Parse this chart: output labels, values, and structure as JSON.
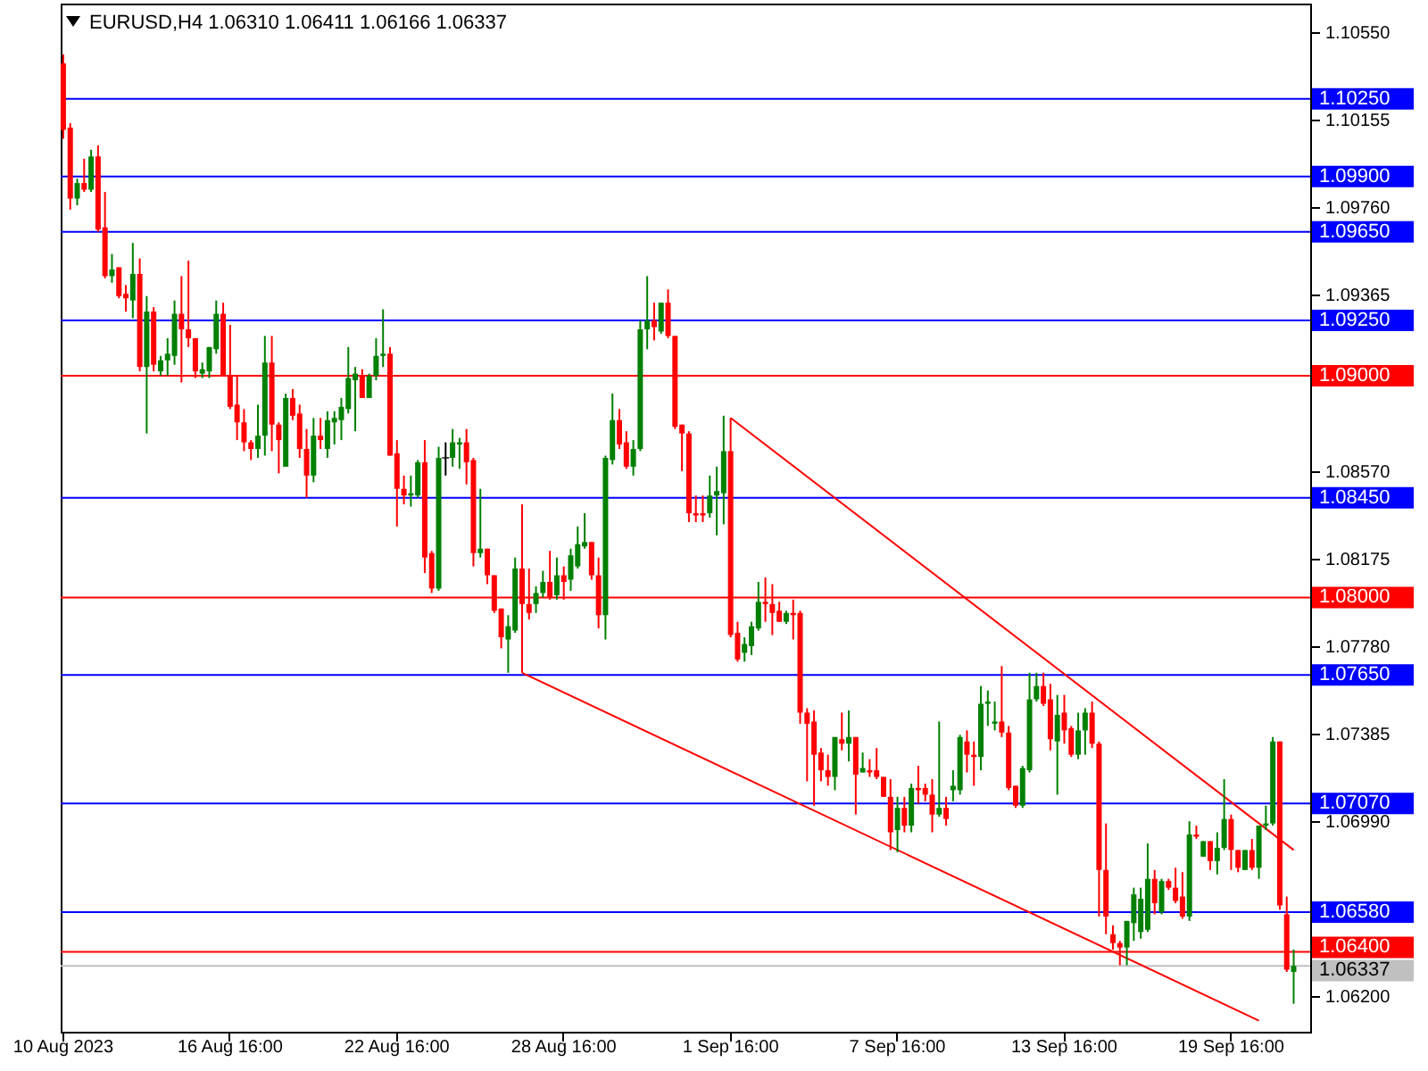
{
  "chart_data": {
    "type": "candlestick",
    "title": "EURUSD,H4 1.06310 1.06411 1.06166 1.06337",
    "categories": [
      "10 Aug 2023",
      null,
      null,
      null,
      null,
      null,
      null,
      null,
      null,
      null,
      null,
      null,
      null,
      null,
      null,
      null,
      null,
      null,
      null,
      null,
      null,
      null,
      null,
      null,
      "16 Aug 16:00",
      null,
      null,
      null,
      null,
      null,
      null,
      null,
      null,
      null,
      null,
      null,
      null,
      null,
      null,
      null,
      null,
      null,
      null,
      null,
      null,
      null,
      null,
      null,
      "22 Aug 16:00",
      null,
      null,
      null,
      null,
      null,
      null,
      null,
      null,
      null,
      null,
      null,
      null,
      null,
      null,
      null,
      null,
      null,
      null,
      null,
      null,
      null,
      null,
      null,
      "28 Aug 16:00",
      null,
      null,
      null,
      null,
      null,
      null,
      null,
      null,
      null,
      null,
      null,
      null,
      null,
      null,
      null,
      null,
      null,
      null,
      null,
      null,
      null,
      null,
      null,
      "1 Sep 16:00",
      null,
      null,
      null,
      null,
      null,
      null,
      null,
      null,
      null,
      null,
      null,
      null,
      null,
      null,
      null,
      null,
      null,
      null,
      null,
      null,
      null,
      null,
      null,
      "7 Sep 16:00",
      null,
      null,
      null,
      null,
      null,
      null,
      null,
      null,
      null,
      null,
      null,
      null,
      null,
      null,
      null,
      null,
      null,
      null,
      null,
      null,
      null,
      null,
      null,
      "13 Sep 16:00",
      null,
      null,
      null,
      null,
      null,
      null,
      null,
      null,
      null,
      null,
      null,
      null,
      null,
      null,
      null,
      null,
      null,
      null,
      null,
      null,
      null,
      null,
      null,
      "19 Sep 16:00",
      null,
      null,
      null,
      null,
      null,
      null,
      null,
      null,
      null
    ],
    "ohlc": [
      [
        1.1041,
        1.1045,
        1.1007,
        1.1011
      ],
      [
        1.1012,
        1.1014,
        1.0975,
        1.098
      ],
      [
        1.098,
        1.0989,
        1.0977,
        1.0987
      ],
      [
        1.0987,
        1.0998,
        1.0983,
        1.0984
      ],
      [
        1.0984,
        1.1002,
        1.0983,
        1.0999
      ],
      [
        1.0999,
        1.1004,
        1.0965,
        1.0966
      ],
      [
        1.0967,
        1.0983,
        1.0944,
        1.0945
      ],
      [
        1.0945,
        1.0955,
        1.0942,
        1.0948
      ],
      [
        1.0949,
        1.0949,
        1.0935,
        1.0936
      ],
      [
        1.0937,
        1.0941,
        1.0929,
        1.0935
      ],
      [
        1.0934,
        1.096,
        1.0926,
        1.0946
      ],
      [
        1.0946,
        1.0953,
        1.0902,
        1.0904
      ],
      [
        1.0904,
        1.0936,
        1.0874,
        1.0929
      ],
      [
        1.0929,
        1.0931,
        1.0902,
        1.0905
      ],
      [
        1.0902,
        1.0909,
        1.09,
        1.0907
      ],
      [
        1.0907,
        1.0917,
        1.09,
        1.091
      ],
      [
        1.0909,
        1.0934,
        1.0905,
        1.0928
      ],
      [
        1.0928,
        1.0945,
        1.0897,
        1.0921
      ],
      [
        1.0921,
        1.0952,
        1.0913,
        1.0917
      ],
      [
        1.0917,
        1.0917,
        1.0899,
        1.0902
      ],
      [
        1.0901,
        1.0906,
        1.0899,
        1.0903
      ],
      [
        1.0902,
        1.0913,
        1.0899,
        1.0913
      ],
      [
        1.0912,
        1.0934,
        1.091,
        1.0928
      ],
      [
        1.0928,
        1.0933,
        1.09,
        1.09
      ],
      [
        1.09,
        1.0923,
        1.0885,
        1.0886
      ],
      [
        1.0887,
        1.09,
        1.0871,
        1.0879
      ],
      [
        1.0879,
        1.0885,
        1.0866,
        1.087
      ],
      [
        1.087,
        1.0871,
        1.0862,
        1.0867
      ],
      [
        1.0867,
        1.0887,
        1.0863,
        1.0873
      ],
      [
        1.0873,
        1.0918,
        1.0864,
        1.0906
      ],
      [
        1.0906,
        1.0918,
        1.0866,
        1.0878
      ],
      [
        1.0878,
        1.0879,
        1.0856,
        1.0871
      ],
      [
        1.0859,
        1.0892,
        1.0859,
        1.089
      ],
      [
        1.089,
        1.0894,
        1.088,
        1.0882
      ],
      [
        1.0883,
        1.0887,
        1.0863,
        1.0867
      ],
      [
        1.0867,
        1.0876,
        1.0845,
        1.0855
      ],
      [
        1.0855,
        1.0881,
        1.0852,
        1.0873
      ],
      [
        1.0873,
        1.0881,
        1.0867,
        1.0871
      ],
      [
        1.0867,
        1.0884,
        1.0863,
        1.088
      ],
      [
        1.0879,
        1.0884,
        1.0869,
        1.0881
      ],
      [
        1.088,
        1.089,
        1.0871,
        1.0886
      ],
      [
        1.0885,
        1.0913,
        1.0883,
        1.0899
      ],
      [
        1.0898,
        1.0904,
        1.0875,
        1.0901
      ],
      [
        1.09,
        1.0903,
        1.089,
        1.089
      ],
      [
        1.089,
        1.0901,
        1.089,
        1.09
      ],
      [
        1.09,
        1.0917,
        1.0898,
        1.0909
      ],
      [
        1.0909,
        1.093,
        1.0904,
        1.091
      ],
      [
        1.091,
        1.0913,
        1.0864,
        1.0864
      ],
      [
        1.0865,
        1.0871,
        1.0832,
        1.0849
      ],
      [
        1.0849,
        1.0855,
        1.0842,
        1.0846
      ],
      [
        1.0846,
        1.0855,
        1.0841,
        1.0847
      ],
      [
        1.0846,
        1.0862,
        1.0845,
        1.0861
      ],
      [
        1.0861,
        1.0871,
        1.0811,
        1.0818
      ],
      [
        1.082,
        1.0821,
        1.0802,
        1.0804
      ],
      [
        1.0804,
        1.0868,
        1.0803,
        1.0863
      ],
      [
        1.0863,
        1.087,
        1.0855,
        1.0863
      ],
      [
        1.0863,
        1.0876,
        1.0859,
        1.087
      ],
      [
        1.0869,
        1.0872,
        1.0858,
        1.087
      ],
      [
        1.087,
        1.0876,
        1.0851,
        1.0861
      ],
      [
        1.0862,
        1.0863,
        1.0814,
        1.082
      ],
      [
        1.082,
        1.0849,
        1.0818,
        1.0822
      ],
      [
        1.0822,
        1.0822,
        1.0806,
        1.081
      ],
      [
        1.081,
        1.081,
        1.0793,
        1.0794
      ],
      [
        1.0795,
        1.0795,
        1.0777,
        1.0782
      ],
      [
        1.0781,
        1.0792,
        1.0766,
        1.0787
      ],
      [
        1.0785,
        1.0818,
        1.0784,
        1.0813
      ],
      [
        1.0813,
        1.0842,
        1.0766,
        1.0797
      ],
      [
        1.0797,
        1.0813,
        1.079,
        1.0793
      ],
      [
        1.0797,
        1.0805,
        1.0793,
        1.0802
      ],
      [
        1.0802,
        1.0812,
        1.08,
        1.0807
      ],
      [
        1.0807,
        1.0821,
        1.0799,
        1.08
      ],
      [
        1.0801,
        1.0818,
        1.0799,
        1.081
      ],
      [
        1.081,
        1.0814,
        1.0799,
        1.0807
      ],
      [
        1.0808,
        1.0822,
        1.0803,
        1.0819
      ],
      [
        1.0814,
        1.0832,
        1.0813,
        1.0824
      ],
      [
        1.0823,
        1.0838,
        1.0822,
        1.0825
      ],
      [
        1.0825,
        1.0825,
        1.0808,
        1.081
      ],
      [
        1.081,
        1.0818,
        1.0786,
        1.0792
      ],
      [
        1.0792,
        1.0864,
        1.0781,
        1.0863
      ],
      [
        1.0862,
        1.0892,
        1.086,
        1.088
      ],
      [
        1.088,
        1.0885,
        1.0867,
        1.0869
      ],
      [
        1.087,
        1.0875,
        1.0858,
        1.0859
      ],
      [
        1.0859,
        1.0871,
        1.0855,
        1.0867
      ],
      [
        1.0867,
        1.0925,
        1.0866,
        1.0921
      ],
      [
        1.0921,
        1.0945,
        1.0912,
        1.0925
      ],
      [
        1.0925,
        1.0933,
        1.0916,
        1.0922
      ],
      [
        1.092,
        1.0933,
        1.0919,
        1.0933
      ],
      [
        1.0933,
        1.0939,
        1.0917,
        1.0918
      ],
      [
        1.0918,
        1.0918,
        1.0876,
        1.0877
      ],
      [
        1.0878,
        1.0878,
        1.0857,
        1.0874
      ],
      [
        1.0874,
        1.0875,
        1.0834,
        1.0838
      ],
      [
        1.0838,
        1.0846,
        1.0834,
        1.0837
      ],
      [
        1.0838,
        1.0846,
        1.0834,
        1.0837
      ],
      [
        1.0838,
        1.0855,
        1.0836,
        1.0846
      ],
      [
        1.0846,
        1.0859,
        1.0828,
        1.0848
      ],
      [
        1.0847,
        1.0882,
        1.0833,
        1.0866
      ],
      [
        1.0866,
        1.0881,
        1.0782,
        1.0783
      ],
      [
        1.0784,
        1.0789,
        1.0771,
        1.0772
      ],
      [
        1.0775,
        1.0782,
        1.0771,
        1.0779
      ],
      [
        1.0778,
        1.0789,
        1.0774,
        1.0787
      ],
      [
        1.0786,
        1.0807,
        1.0785,
        1.0798
      ],
      [
        1.0798,
        1.0809,
        1.0789,
        1.0797
      ],
      [
        1.0797,
        1.0806,
        1.0783,
        1.0793
      ],
      [
        1.0794,
        1.0798,
        1.0789,
        1.0789
      ],
      [
        1.0789,
        1.0794,
        1.0788,
        1.0793
      ],
      [
        1.0793,
        1.0799,
        1.0781,
        1.0792
      ],
      [
        1.0793,
        1.0794,
        1.0743,
        1.0748
      ],
      [
        1.0748,
        1.075,
        1.0717,
        1.0743
      ],
      [
        1.0744,
        1.0749,
        1.0706,
        1.0729
      ],
      [
        1.073,
        1.0732,
        1.0717,
        1.0722
      ],
      [
        1.0722,
        1.0729,
        1.0715,
        1.0719
      ],
      [
        1.0719,
        1.0737,
        1.0713,
        1.0737
      ],
      [
        1.0736,
        1.0748,
        1.0731,
        1.0734
      ],
      [
        1.0734,
        1.0749,
        1.0726,
        1.0737
      ],
      [
        1.0737,
        1.0737,
        1.0702,
        1.072
      ],
      [
        1.0721,
        1.073,
        1.0721,
        1.0723
      ],
      [
        1.0722,
        1.0727,
        1.0719,
        1.0721
      ],
      [
        1.0722,
        1.0732,
        1.0718,
        1.0719
      ],
      [
        1.0719,
        1.0719,
        1.071,
        1.071
      ],
      [
        1.071,
        1.0718,
        1.0686,
        1.0694
      ],
      [
        1.0695,
        1.071,
        1.0685,
        1.0705
      ],
      [
        1.0705,
        1.071,
        1.0694,
        1.0697
      ],
      [
        1.0697,
        1.0716,
        1.0694,
        1.0714
      ],
      [
        1.0714,
        1.0724,
        1.0707,
        1.0713
      ],
      [
        1.0714,
        1.0716,
        1.0708,
        1.0711
      ],
      [
        1.0711,
        1.0718,
        1.0694,
        1.0702
      ],
      [
        1.0702,
        1.0744,
        1.0701,
        1.0705
      ],
      [
        1.0705,
        1.071,
        1.0697,
        1.07
      ],
      [
        1.0713,
        1.0722,
        1.0708,
        1.0715
      ],
      [
        1.0713,
        1.0738,
        1.0711,
        1.0737
      ],
      [
        1.0735,
        1.074,
        1.0721,
        1.0729
      ],
      [
        1.0729,
        1.0735,
        1.0715,
        1.0728
      ],
      [
        1.0728,
        1.076,
        1.0722,
        1.0752
      ],
      [
        1.0752,
        1.0758,
        1.0742,
        1.0753
      ],
      [
        1.0743,
        1.0753,
        1.074,
        1.0744
      ],
      [
        1.0744,
        1.0769,
        1.0737,
        1.0739
      ],
      [
        1.0739,
        1.0742,
        1.0713,
        1.0714
      ],
      [
        1.0715,
        1.0715,
        1.0705,
        1.0706
      ],
      [
        1.0706,
        1.0724,
        1.0705,
        1.0723
      ],
      [
        1.0722,
        1.0766,
        1.0721,
        1.0754
      ],
      [
        1.0754,
        1.0766,
        1.0753,
        1.076
      ],
      [
        1.076,
        1.0766,
        1.0751,
        1.0752
      ],
      [
        1.0754,
        1.0761,
        1.0731,
        1.0736
      ],
      [
        1.0735,
        1.0756,
        1.0711,
        1.0747
      ],
      [
        1.0748,
        1.0756,
        1.0734,
        1.074
      ],
      [
        1.0741,
        1.0742,
        1.0728,
        1.0729
      ],
      [
        1.0729,
        1.0748,
        1.0727,
        1.074
      ],
      [
        1.074,
        1.075,
        1.0729,
        1.0748
      ],
      [
        1.0748,
        1.0753,
        1.0732,
        1.0734
      ],
      [
        1.0734,
        1.0735,
        1.0656,
        1.0677
      ],
      [
        1.0677,
        1.0698,
        1.0648,
        1.0656
      ],
      [
        1.0648,
        1.0652,
        1.0641,
        1.0644
      ],
      [
        1.0644,
        1.0645,
        1.0634,
        1.0642
      ],
      [
        1.0642,
        1.0654,
        1.0634,
        1.0654
      ],
      [
        1.0653,
        1.0669,
        1.0645,
        1.0666
      ],
      [
        1.0649,
        1.0669,
        1.0646,
        1.0664
      ],
      [
        1.065,
        1.0689,
        1.0649,
        1.0673
      ],
      [
        1.0673,
        1.0677,
        1.0657,
        1.0662
      ],
      [
        1.0658,
        1.0673,
        1.0657,
        1.0672
      ],
      [
        1.0672,
        1.0673,
        1.0668,
        1.0669
      ],
      [
        1.0669,
        1.0678,
        1.0662,
        1.0663
      ],
      [
        1.0665,
        1.0676,
        1.0655,
        1.0656
      ],
      [
        1.0656,
        1.0699,
        1.0654,
        1.0693
      ],
      [
        1.0693,
        1.0697,
        1.0691,
        1.0692
      ],
      [
        1.0683,
        1.069,
        1.0683,
        1.069
      ],
      [
        1.069,
        1.069,
        1.0677,
        1.0681
      ],
      [
        1.0681,
        1.0694,
        1.0675,
        1.0687
      ],
      [
        1.0687,
        1.0718,
        1.0686,
        1.07
      ],
      [
        1.07,
        1.0702,
        1.0677,
        1.0686
      ],
      [
        1.0686,
        1.0686,
        1.0676,
        1.0678
      ],
      [
        1.0677,
        1.0686,
        1.0677,
        1.0686
      ],
      [
        1.0686,
        1.0691,
        1.0677,
        1.0678
      ],
      [
        1.0678,
        1.0697,
        1.0673,
        1.0697
      ],
      [
        1.0697,
        1.0706,
        1.0695,
        1.0698
      ],
      [
        1.0698,
        1.0737,
        1.0697,
        1.0735
      ],
      [
        1.0735,
        1.0735,
        1.0659,
        1.0661
      ],
      [
        1.0657,
        1.0665,
        1.0631,
        1.0632
      ],
      [
        1.0631,
        1.06411,
        1.06166,
        1.06337
      ]
    ],
    "series": [
      {
        "type": "line",
        "color": "#ff0000",
        "values": [
          null,
          null,
          null,
          null,
          null,
          null,
          null,
          null,
          null,
          null,
          null,
          null,
          null,
          null,
          null,
          null,
          null,
          null,
          null,
          null,
          null,
          null,
          null,
          null,
          null,
          null,
          null,
          null,
          null,
          null,
          null,
          null,
          null,
          null,
          null,
          null,
          null,
          null,
          null,
          null,
          null,
          null,
          null,
          null,
          null,
          null,
          null,
          null,
          null,
          null,
          null,
          null,
          null,
          null,
          null,
          null,
          null,
          null,
          null,
          null,
          null,
          null,
          null,
          null,
          null,
          null,
          null,
          null,
          null,
          null,
          null,
          null,
          null,
          null,
          null,
          null,
          null,
          null,
          null,
          null,
          null,
          null,
          null,
          null,
          null,
          null,
          null,
          null,
          null,
          null,
          null,
          null,
          null,
          null,
          null,
          null,
          1.0881,
          null,
          null,
          null,
          null,
          null,
          null,
          null,
          null,
          null,
          null,
          null,
          null,
          null,
          null,
          null,
          null,
          null,
          null,
          null,
          null,
          null,
          null,
          null,
          null,
          null,
          null,
          null,
          null,
          null,
          null,
          null,
          null,
          null,
          null,
          null,
          null,
          null,
          null,
          null,
          null,
          null,
          null,
          null,
          null,
          null,
          null,
          null,
          null,
          null,
          null,
          null,
          null,
          null,
          null,
          null,
          null,
          null,
          null,
          null,
          null,
          null,
          null,
          null,
          null,
          null,
          null,
          null,
          null,
          null,
          null,
          null,
          null,
          null,
          null,
          null,
          null,
          null,
          null,
          null,
          null,
          1.0686
        ]
      },
      {
        "type": "line",
        "color": "#ff0000",
        "values": [
          null,
          null,
          null,
          null,
          null,
          null,
          null,
          null,
          null,
          null,
          null,
          null,
          null,
          null,
          null,
          null,
          null,
          null,
          null,
          null,
          null,
          null,
          null,
          null,
          null,
          null,
          null,
          null,
          null,
          null,
          null,
          null,
          null,
          null,
          null,
          null,
          null,
          null,
          null,
          null,
          null,
          null,
          null,
          null,
          null,
          null,
          null,
          null,
          null,
          null,
          null,
          null,
          null,
          null,
          null,
          null,
          null,
          null,
          null,
          null,
          null,
          null,
          null,
          null,
          null,
          null,
          1.0766,
          null,
          null,
          null,
          null,
          null,
          null,
          null,
          null,
          null,
          null,
          null,
          null,
          null,
          null,
          null,
          null,
          null,
          null,
          null,
          null,
          null,
          null,
          null,
          null,
          null,
          null,
          null,
          null,
          null,
          null,
          null,
          null,
          null,
          null,
          null,
          null,
          null,
          null,
          null,
          null,
          null,
          null,
          null,
          null,
          null,
          null,
          null,
          null,
          null,
          null,
          null,
          null,
          null,
          null,
          null,
          null,
          null,
          null,
          null,
          null,
          null,
          null,
          null,
          null,
          null,
          null,
          null,
          null,
          null,
          null,
          null,
          null,
          null,
          null,
          null,
          null,
          null,
          null,
          null,
          null,
          null,
          null,
          null,
          null,
          null,
          null,
          null,
          null,
          null,
          null,
          null,
          null,
          null,
          null,
          null,
          null,
          null,
          null,
          null,
          null,
          null,
          null,
          null,
          null,
          null,
          1.0609,
          null,
          null,
          null,
          null,
          null
        ]
      }
    ],
    "ylim": [
      1.0604,
      1.1068
    ],
    "yticks": [
      {
        "value": 1.062,
        "label": "1.06200"
      },
      {
        "value": 1.0699,
        "label": "1.06990"
      },
      {
        "value": 1.07385,
        "label": "1.07385"
      },
      {
        "value": 1.0778,
        "label": "1.07780"
      },
      {
        "value": 1.08175,
        "label": "1.08175"
      },
      {
        "value": 1.0857,
        "label": "1.08570"
      },
      {
        "value": 1.09365,
        "label": "1.09365"
      },
      {
        "value": 1.0976,
        "label": "1.09760"
      },
      {
        "value": 1.10155,
        "label": "1.10155"
      },
      {
        "value": 1.1055,
        "label": "1.10550"
      }
    ],
    "ref_lines": [
      {
        "axis": "y",
        "value": 1.1025,
        "label": "1.10250",
        "color": "#0000ff"
      },
      {
        "axis": "y",
        "value": 1.099,
        "label": "1.09900",
        "color": "#0000ff"
      },
      {
        "axis": "y",
        "value": 1.0965,
        "label": "1.09650",
        "color": "#0000ff"
      },
      {
        "axis": "y",
        "value": 1.0925,
        "label": "1.09250",
        "color": "#0000ff"
      },
      {
        "axis": "y",
        "value": 1.09,
        "label": "1.09000",
        "color": "#ff0000"
      },
      {
        "axis": "y",
        "value": 1.0845,
        "label": "1.08450",
        "color": "#0000ff"
      },
      {
        "axis": "y",
        "value": 1.08,
        "label": "1.08000",
        "color": "#ff0000"
      },
      {
        "axis": "y",
        "value": 1.0765,
        "label": "1.07650",
        "color": "#0000ff"
      },
      {
        "axis": "y",
        "value": 1.0707,
        "label": "1.07070",
        "color": "#0000ff"
      },
      {
        "axis": "y",
        "value": 1.0658,
        "label": "1.06580",
        "color": "#0000ff"
      },
      {
        "axis": "y",
        "value": 1.06337,
        "label": "1.06337",
        "color": "#c0c0c0"
      },
      {
        "axis": "y",
        "value": 1.064,
        "label": "1.06400",
        "color": "#ff0000"
      }
    ]
  }
}
